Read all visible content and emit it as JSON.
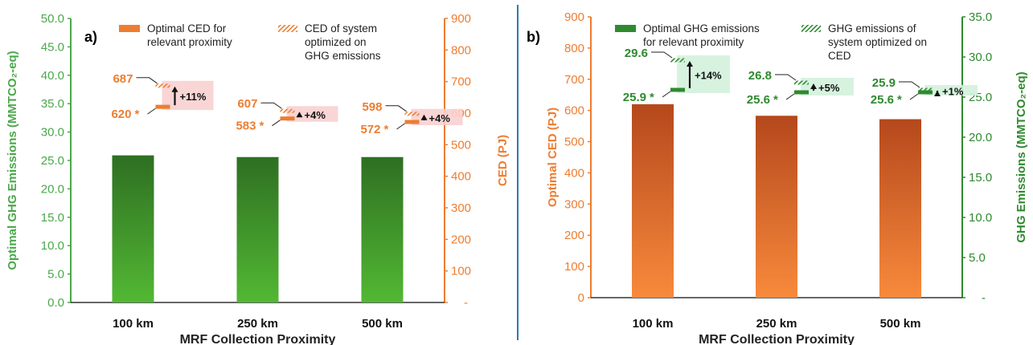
{
  "colors": {
    "green": "#2f8a2f",
    "green_dark": "#226b22",
    "green_axis": "#4aa84a",
    "orange": "#ed7d31",
    "orange_dark": "#b84f14",
    "divider": "#2e7ea6",
    "callout_pink": "#f8d0d0",
    "callout_green": "#d3f2dd"
  },
  "chart_data": [
    {
      "type": "bar",
      "panel_label": "a)",
      "categories": [
        "100 km",
        "250 km",
        "500 km"
      ],
      "xlabel": "MRF Collection Proximity",
      "ylabel": "Optimal GHG Emissions (MMTCO₂-eq)",
      "ylim": [
        0,
        50
      ],
      "yticks": [
        "0.0",
        "5.0",
        "10.0",
        "15.0",
        "20.0",
        "25.0",
        "30.0",
        "35.0",
        "40.0",
        "45.0",
        "50.0"
      ],
      "y2label": "CED (PJ)",
      "y2lim": [
        0,
        900
      ],
      "y2ticks": [
        "-",
        "100",
        "200",
        "300",
        "400",
        "500",
        "600",
        "700",
        "800",
        "900"
      ],
      "series": [
        {
          "name": "Optimal GHG emissions",
          "axis": "left",
          "values": [
            25.9,
            25.6,
            25.6
          ]
        },
        {
          "name": "Optimal CED for relevant proximity",
          "axis": "right",
          "values": [
            620,
            583,
            572
          ]
        },
        {
          "name": "CED of system optimized on GHG emissions",
          "axis": "right",
          "values": [
            687,
            607,
            598
          ]
        }
      ],
      "low_labels": [
        "620",
        "583",
        "572"
      ],
      "high_labels": [
        "687",
        "607",
        "598"
      ],
      "pct_labels": [
        "+11%",
        "+4%",
        "+4%"
      ],
      "legend": {
        "solid_label_lines": [
          "Optimal CED for",
          "relevant proximity"
        ],
        "hatched_label_lines": [
          "CED of system",
          "optimized on",
          "GHG emissions"
        ]
      },
      "grid": false,
      "legend_position": "top"
    },
    {
      "type": "bar",
      "panel_label": "b)",
      "categories": [
        "100 km",
        "250 km",
        "500 km"
      ],
      "xlabel": "MRF Collection Proximity",
      "ylabel": "Optimal CED (PJ)",
      "ylim": [
        0,
        900
      ],
      "yticks": [
        "0",
        "100",
        "200",
        "300",
        "400",
        "500",
        "600",
        "700",
        "800",
        "900"
      ],
      "y2label": "GHG Emissions (MMTCO₂-eq)",
      "y2lim": [
        0,
        35
      ],
      "y2ticks": [
        "-",
        "5.0",
        "10.0",
        "15.0",
        "20.0",
        "25.0",
        "30.0",
        "35.0"
      ],
      "series": [
        {
          "name": "Optimal CED",
          "axis": "left",
          "values": [
            620,
            583,
            572
          ]
        },
        {
          "name": "Optimal GHG emissions for relevant proximity",
          "axis": "right",
          "values": [
            25.9,
            25.6,
            25.6
          ]
        },
        {
          "name": "GHG emissions of system optimized on CED",
          "axis": "right",
          "values": [
            29.6,
            26.8,
            25.9
          ]
        }
      ],
      "low_labels": [
        "25.9",
        "25.6",
        "25.6"
      ],
      "high_labels": [
        "29.6",
        "26.8",
        "25.9"
      ],
      "pct_labels": [
        "+14%",
        "+5%",
        "+1%"
      ],
      "legend": {
        "solid_label_lines": [
          "Optimal GHG emissions",
          "for relevant proximity"
        ],
        "hatched_label_lines": [
          "GHG emissions of",
          "system optimized on",
          "CED"
        ]
      },
      "grid": false,
      "legend_position": "top"
    }
  ]
}
